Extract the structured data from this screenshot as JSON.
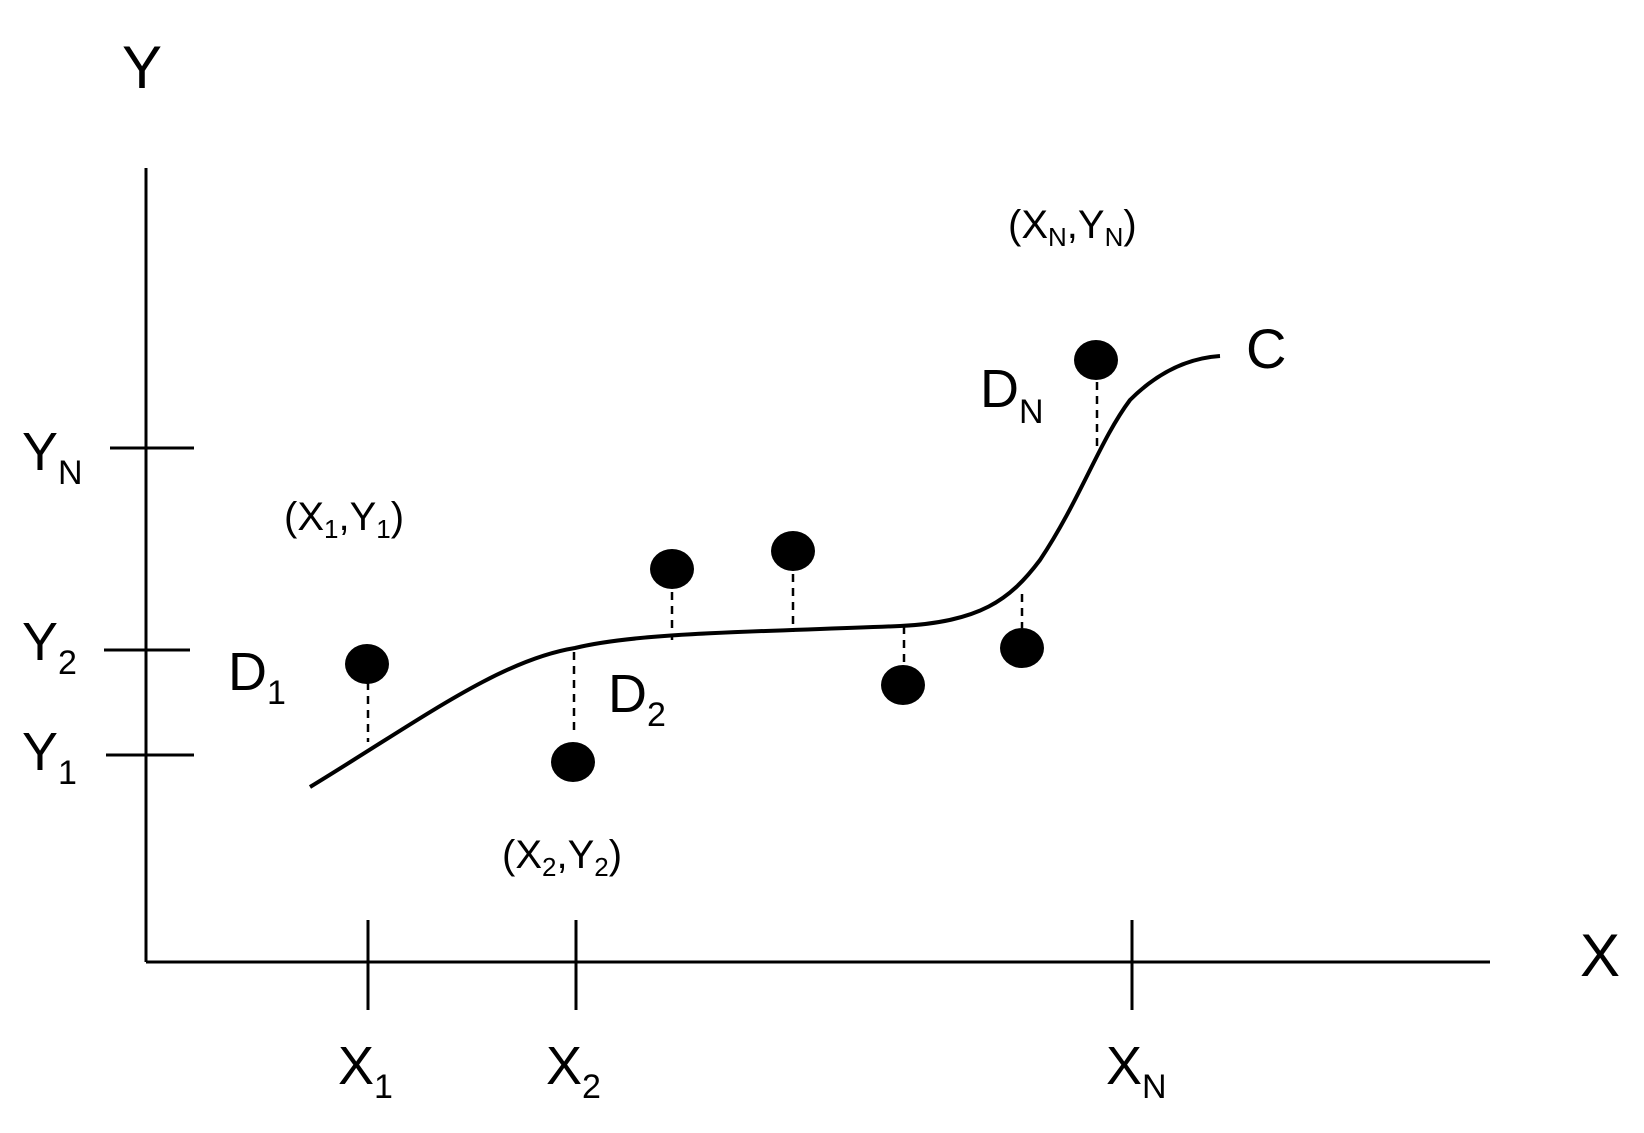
{
  "axes": {
    "x_label": "X",
    "y_label": "Y",
    "x_ticks": [
      {
        "main": "X",
        "sub": "1"
      },
      {
        "main": "X",
        "sub": "2"
      },
      {
        "main": "X",
        "sub": "N"
      }
    ],
    "y_ticks": [
      {
        "main": "Y",
        "sub": "N"
      },
      {
        "main": "Y",
        "sub": "2"
      },
      {
        "main": "Y",
        "sub": "1"
      }
    ]
  },
  "points": [
    {
      "pre": "(X",
      "s1": "1",
      "mid": ",Y",
      "s2": "1",
      "post": ")"
    },
    {
      "pre": "(X",
      "s1": "2",
      "mid": ",Y",
      "s2": "2",
      "post": ")"
    },
    {
      "pre": "(X",
      "s1": "N",
      "mid": ",Y",
      "s2": "N",
      "post": ")"
    }
  ],
  "deviations": [
    {
      "main": "D",
      "sub": "1"
    },
    {
      "main": "D",
      "sub": "2"
    },
    {
      "main": "D",
      "sub": "N"
    }
  ],
  "curve": {
    "label": "C"
  }
}
